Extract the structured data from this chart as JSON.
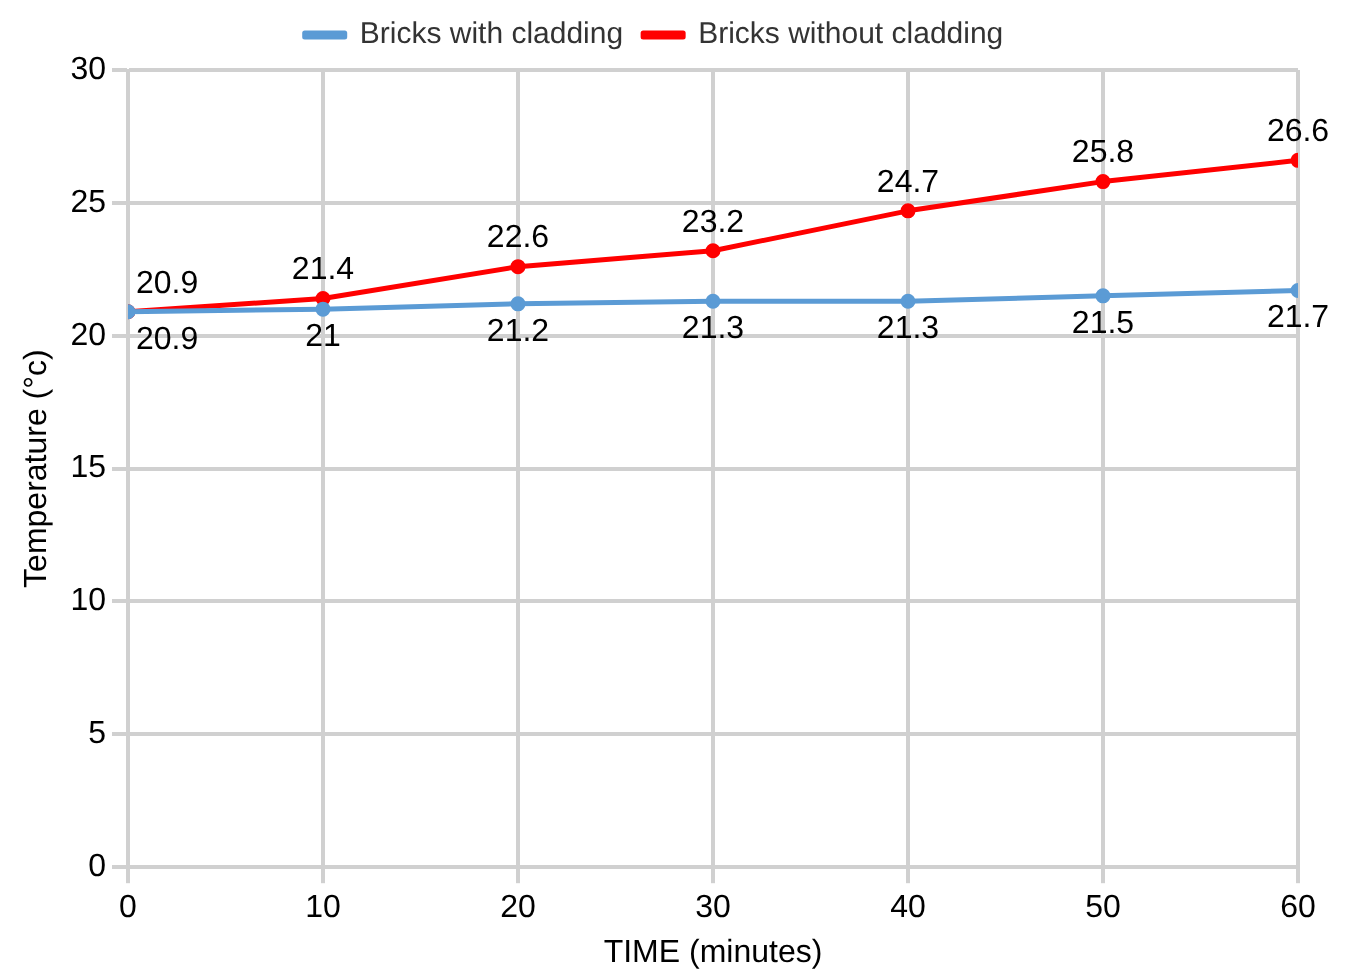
{
  "chart_data": {
    "type": "line",
    "xlabel": "TIME (minutes)",
    "ylabel": "Temperature (°c)",
    "x": [
      0,
      10,
      20,
      30,
      40,
      50,
      60
    ],
    "series": [
      {
        "name": "Bricks with cladding",
        "color": "#5b9bd5",
        "values": [
          20.9,
          21,
          21.2,
          21.3,
          21.3,
          21.5,
          21.7
        ]
      },
      {
        "name": "Bricks without cladding",
        "color": "#ff0000",
        "values": [
          20.9,
          21.4,
          22.6,
          23.2,
          24.7,
          25.8,
          26.6
        ]
      }
    ],
    "xlim": [
      0,
      60
    ],
    "xticks": [
      0,
      10,
      20,
      30,
      40,
      50,
      60
    ],
    "ylim": [
      0,
      30
    ],
    "yticks": [
      0,
      5,
      10,
      15,
      20,
      25,
      30
    ],
    "grid": true,
    "legend": "top",
    "marker": "circle",
    "line_style": "solid",
    "data_labels": true
  }
}
